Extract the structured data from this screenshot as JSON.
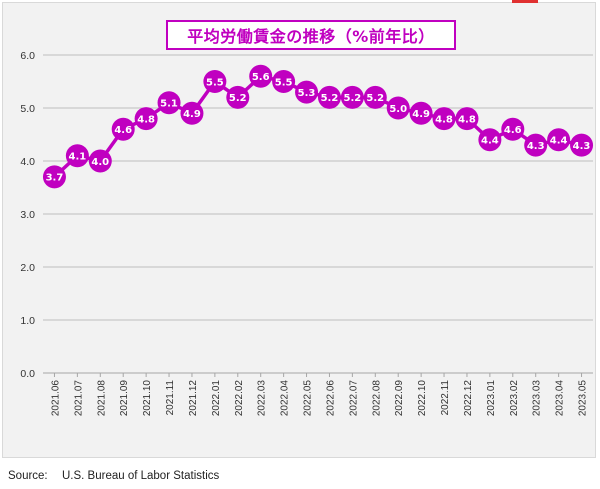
{
  "chart_data": {
    "type": "line",
    "title": "平均労働賃金の推移（%前年比）",
    "xlabel": "",
    "ylabel": "",
    "ylim": [
      0.0,
      6.0
    ],
    "yticks": [
      "0.0",
      "1.0",
      "2.0",
      "3.0",
      "4.0",
      "5.0",
      "6.0"
    ],
    "grid": true,
    "categories": [
      "2021.06",
      "2021.07",
      "2021.08",
      "2021.09",
      "2021.10",
      "2021.11",
      "2021.12",
      "2022.01",
      "2022.02",
      "2022.03",
      "2022.04",
      "2022.05",
      "2022.06",
      "2022.07",
      "2022.08",
      "2022.09",
      "2022.10",
      "2022.11",
      "2022.12",
      "2023.01",
      "2023.02",
      "2023.03",
      "2023.04",
      "2023.05"
    ],
    "series": [
      {
        "values": [
          3.7,
          4.1,
          4.0,
          4.6,
          4.8,
          5.1,
          4.9,
          5.5,
          5.2,
          5.6,
          5.5,
          5.3,
          5.2,
          5.2,
          5.2,
          5.0,
          4.9,
          4.8,
          4.8,
          4.4,
          4.6,
          4.3,
          4.4,
          4.3
        ],
        "labels": [
          "3.7",
          "4.1",
          "4.0",
          "4.6",
          "4.8",
          "5.1",
          "4.9",
          "5.5",
          "5.2",
          "5.6",
          "5.5",
          "5.3",
          "5.2",
          "5.2",
          "5.2",
          "5.0",
          "4.9",
          "4.8",
          "4.8",
          "4.4",
          "4.6",
          "4.3",
          "4.4",
          "4.3"
        ],
        "color": "#c000c0"
      }
    ]
  },
  "source": {
    "label": "Source:",
    "text": "U.S. Bureau of Labor Statistics"
  },
  "colors": {
    "accent": "#c000c0",
    "grid": "#bfbfbf",
    "background": "#f2f2f2"
  }
}
